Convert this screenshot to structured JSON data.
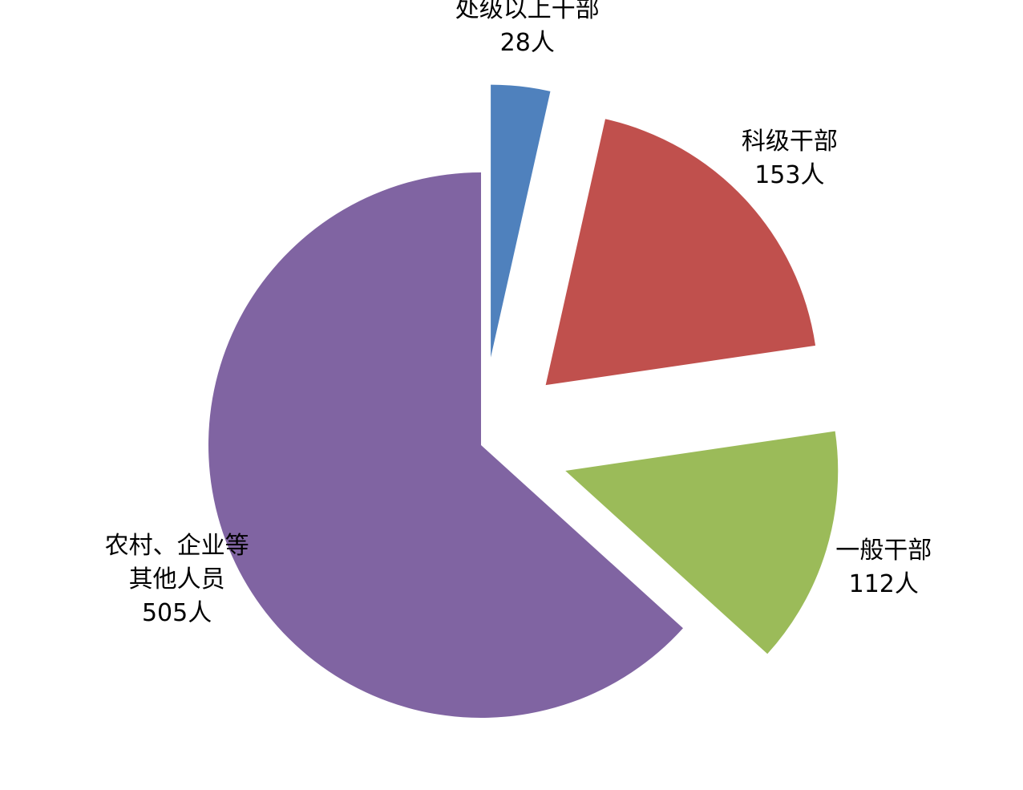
{
  "chart_data": {
    "type": "pie",
    "categories": [
      "处级以上干部",
      "科级干部",
      "一般干部",
      "农村、企业等其他人员"
    ],
    "values": [
      28,
      153,
      112,
      505
    ],
    "value_labels": [
      "28人",
      "153人",
      "112人",
      "505人"
    ],
    "colors": [
      "#4f81bd",
      "#c0504d",
      "#9bbb59",
      "#8064a2"
    ]
  }
}
